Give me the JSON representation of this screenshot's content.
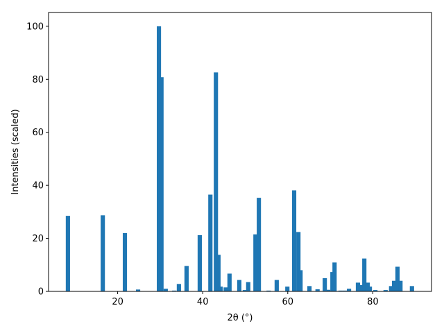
{
  "chart_data": {
    "type": "bar",
    "xlabel": "2θ (°)",
    "ylabel": "Intensities (scaled)",
    "color": "#1f77b4",
    "x": [
      8.3,
      16.5,
      21.7,
      24.8,
      29.7,
      30.3,
      31.3,
      33.3,
      34.4,
      36.2,
      39.3,
      41.8,
      43.1,
      43.7,
      44.2,
      45.4,
      46.3,
      48.6,
      49.9,
      50.7,
      52.4,
      53.2,
      55.5,
      57.4,
      59.9,
      61.5,
      62.5,
      63.0,
      65.1,
      67.0,
      68.7,
      69.5,
      70.5,
      71.0,
      72.4,
      73.4,
      74.4,
      76.5,
      77.3,
      78.0,
      78.8,
      79.3,
      80.6,
      83.0,
      84.3,
      85.0,
      85.8,
      86.5,
      89.2
    ],
    "values": [
      28.5,
      28.7,
      22,
      0.7,
      100,
      80.8,
      1,
      0.3,
      2.8,
      9.6,
      21.2,
      36.5,
      82.6,
      13.8,
      1.8,
      1.5,
      6.7,
      4.3,
      0.5,
      3.5,
      21.5,
      35.3,
      0.3,
      4.3,
      1.8,
      38.1,
      22.4,
      8,
      2,
      0.8,
      5,
      0.6,
      7.3,
      10.9,
      0.3,
      0.3,
      1,
      3.3,
      2.4,
      12.4,
      3.3,
      1.8,
      0.5,
      0.5,
      2,
      4,
      9.3,
      4,
      2
    ],
    "xlim": [
      3.75,
      93.8
    ],
    "ylim": [
      0,
      105.2
    ],
    "xticks": [
      20,
      40,
      60,
      80
    ],
    "yticks": [
      0,
      20,
      40,
      60,
      80,
      100
    ]
  }
}
